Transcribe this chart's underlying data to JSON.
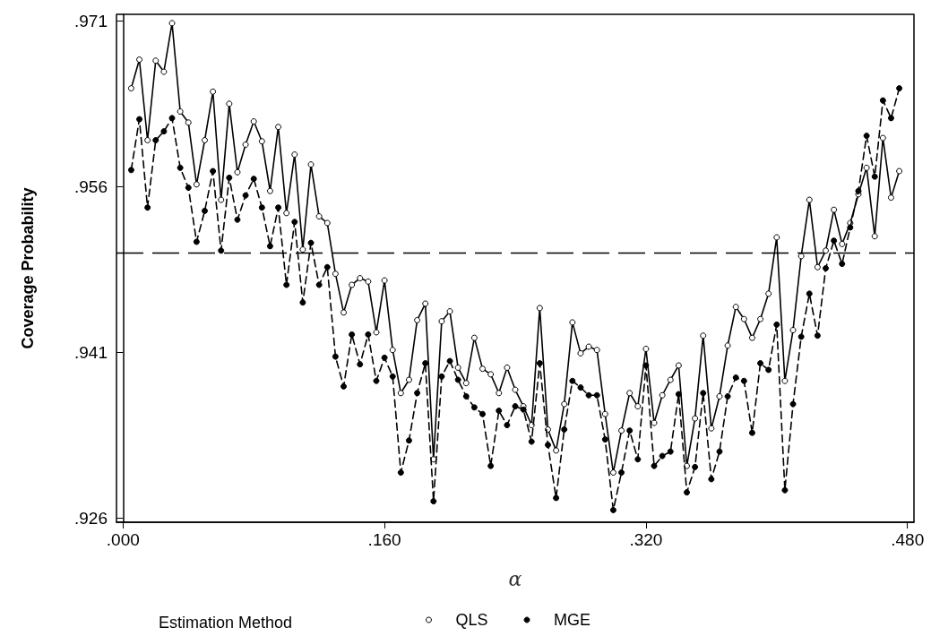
{
  "chart_data": {
    "type": "line",
    "xlabel": "α",
    "ylabel": "Coverage Probability",
    "legend_title": "Estimation Method",
    "legend": "bottom",
    "marker": "circle",
    "x": [
      0.005,
      0.01,
      0.015,
      0.02,
      0.025,
      0.03,
      0.035,
      0.04,
      0.045,
      0.05,
      0.055,
      0.06,
      0.065,
      0.07,
      0.075,
      0.08,
      0.085,
      0.09,
      0.095,
      0.1,
      0.105,
      0.11,
      0.115,
      0.12,
      0.125,
      0.13,
      0.135,
      0.14,
      0.145,
      0.15,
      0.155,
      0.16,
      0.165,
      0.17,
      0.175,
      0.18,
      0.185,
      0.19,
      0.195,
      0.2,
      0.205,
      0.21,
      0.215,
      0.22,
      0.225,
      0.23,
      0.235,
      0.24,
      0.245,
      0.25,
      0.255,
      0.26,
      0.265,
      0.27,
      0.275,
      0.28,
      0.285,
      0.29,
      0.295,
      0.3,
      0.305,
      0.31,
      0.315,
      0.32,
      0.325,
      0.33,
      0.335,
      0.34,
      0.345,
      0.35,
      0.355,
      0.36,
      0.365,
      0.37,
      0.375,
      0.38,
      0.385,
      0.39,
      0.395,
      0.4,
      0.405,
      0.41,
      0.415,
      0.42,
      0.425,
      0.43,
      0.435,
      0.44,
      0.445,
      0.45,
      0.455,
      0.46,
      0.465,
      0.47,
      0.475
    ],
    "series": [
      {
        "name": "QLS",
        "color": "#000000",
        "line_style": "solid",
        "values": [
          0.9649,
          0.9675,
          0.9602,
          0.9674,
          0.9664,
          0.9708,
          0.9628,
          0.9618,
          0.9562,
          0.9602,
          0.9646,
          0.9548,
          0.9635,
          0.9573,
          0.9598,
          0.9619,
          0.9601,
          0.9556,
          0.9614,
          0.9536,
          0.9589,
          0.9503,
          0.958,
          0.9533,
          0.9527,
          0.9481,
          0.9446,
          0.9471,
          0.9477,
          0.9474,
          0.9428,
          0.9475,
          0.9412,
          0.9373,
          0.9385,
          0.9439,
          0.9454,
          0.9313,
          0.9438,
          0.9447,
          0.9396,
          0.9382,
          0.9423,
          0.9395,
          0.939,
          0.9373,
          0.9396,
          0.9376,
          0.9361,
          0.9344,
          0.945,
          0.934,
          0.9321,
          0.9363,
          0.9437,
          0.9409,
          0.9415,
          0.9412,
          0.9354,
          0.9301,
          0.9339,
          0.9373,
          0.9361,
          0.9413,
          0.9346,
          0.9371,
          0.9385,
          0.9398,
          0.9307,
          0.935,
          0.9425,
          0.9341,
          0.937,
          0.9416,
          0.9451,
          0.944,
          0.9423,
          0.944,
          0.9463,
          0.9514,
          0.9384,
          0.943,
          0.9497,
          0.9548,
          0.9487,
          0.9502,
          0.9539,
          0.9508,
          0.9527,
          0.9553,
          0.9577,
          0.9515,
          0.9604,
          0.955,
          0.9574
        ]
      },
      {
        "name": "MGE",
        "color": "#000000",
        "line_style": "dashed",
        "values": [
          0.9575,
          0.9621,
          0.9541,
          0.9602,
          0.961,
          0.9622,
          0.9577,
          0.9559,
          0.951,
          0.9538,
          0.9574,
          0.9502,
          0.9568,
          0.953,
          0.9552,
          0.9567,
          0.9541,
          0.9506,
          0.9541,
          0.9471,
          0.9528,
          0.9455,
          0.9509,
          0.9471,
          0.9487,
          0.9406,
          0.9379,
          0.9426,
          0.9399,
          0.9426,
          0.9384,
          0.9405,
          0.9388,
          0.9301,
          0.933,
          0.9373,
          0.94,
          0.9275,
          0.9388,
          0.9402,
          0.9385,
          0.937,
          0.936,
          0.9354,
          0.9307,
          0.9357,
          0.9344,
          0.9361,
          0.9358,
          0.9329,
          0.94,
          0.9326,
          0.9278,
          0.934,
          0.9384,
          0.9378,
          0.9371,
          0.9371,
          0.9331,
          0.9267,
          0.9301,
          0.9339,
          0.9313,
          0.9398,
          0.9307,
          0.9316,
          0.932,
          0.9372,
          0.9283,
          0.9306,
          0.9373,
          0.9295,
          0.932,
          0.937,
          0.9387,
          0.9384,
          0.9337,
          0.94,
          0.9394,
          0.9435,
          0.9285,
          0.9363,
          0.9424,
          0.9463,
          0.9425,
          0.9486,
          0.9511,
          0.949,
          0.9523,
          0.9556,
          0.9606,
          0.9569,
          0.9638,
          0.9622,
          0.9649
        ]
      }
    ],
    "xlim": [
      -0.004,
      0.484
    ],
    "xticks": [
      {
        "value": 0,
        "label": ".000"
      },
      {
        "value": 0.16,
        "label": ".160"
      },
      {
        "value": 0.32,
        "label": ".320"
      },
      {
        "value": 0.48,
        "label": ".480"
      }
    ],
    "ylim": [
      0.9256,
      0.9716
    ],
    "yticks": [
      {
        "value": 0.926,
        "label": ".926"
      },
      {
        "value": 0.941,
        "label": ".941"
      },
      {
        "value": 0.956,
        "label": ".956"
      },
      {
        "value": 0.971,
        "label": ".971"
      }
    ],
    "ref_lines": [
      {
        "axis": "y",
        "value": 0.95,
        "color": "#000000",
        "line_style": "dashed"
      }
    ]
  }
}
